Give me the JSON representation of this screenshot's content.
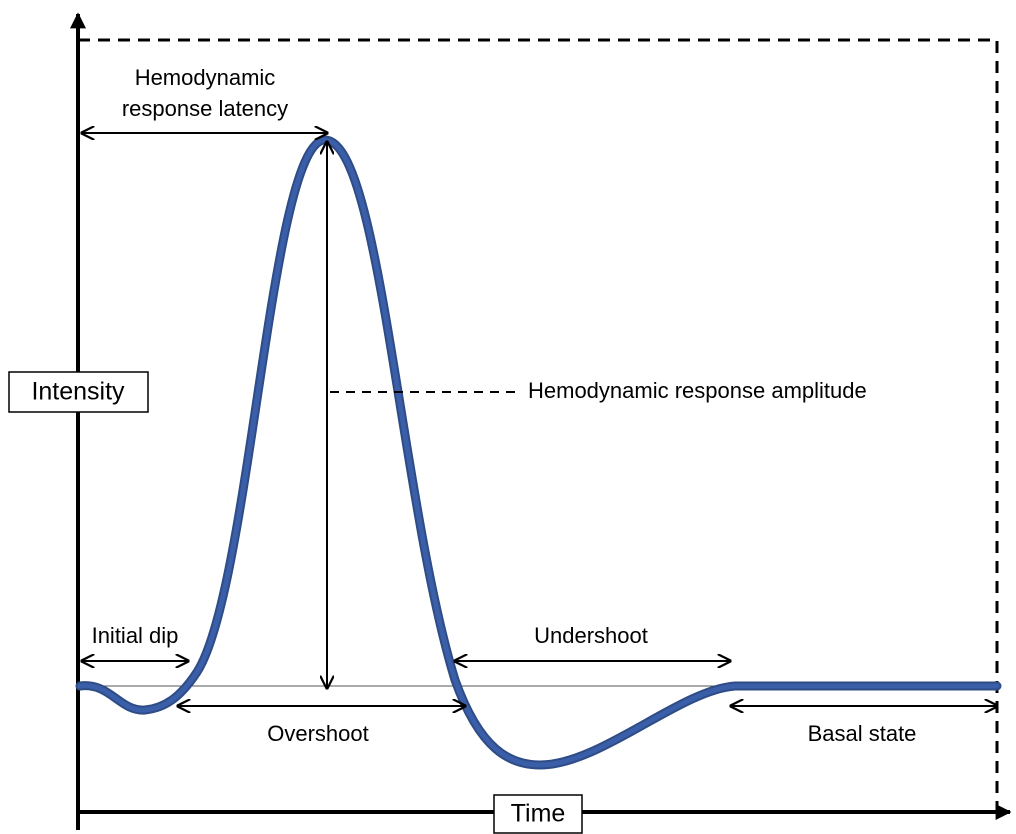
{
  "axes": {
    "y_label": "Intensity",
    "x_label": "Time"
  },
  "annotations": {
    "latency": [
      "Hemodynamic",
      "response latency"
    ],
    "amplitude": "Hemodynamic response amplitude",
    "initial_dip": "Initial dip",
    "overshoot": "Overshoot",
    "undershoot": "Undershoot",
    "basal_state": "Basal state"
  }
}
